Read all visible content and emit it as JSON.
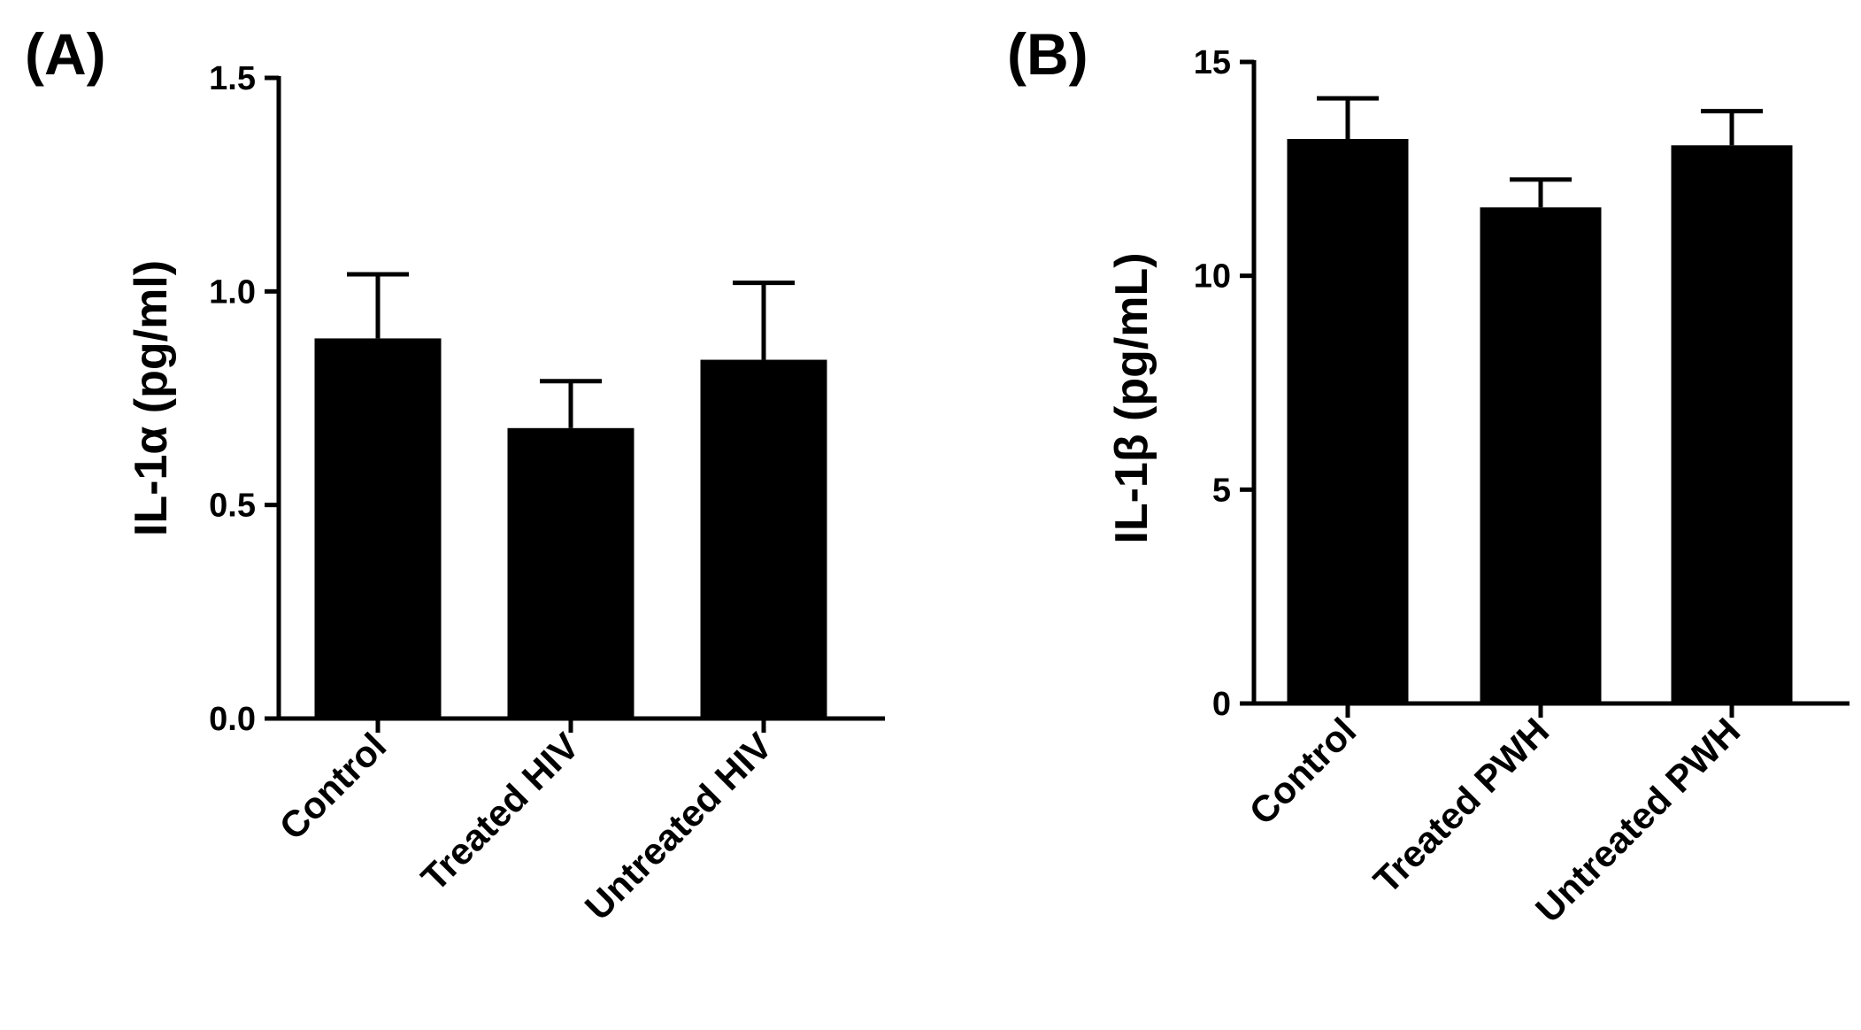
{
  "chart_data": [
    {
      "type": "bar",
      "panel_label": "(A)",
      "title": "",
      "xlabel": "",
      "ylabel": "IL-1α (pg/ml)",
      "ylim": [
        0,
        1.5
      ],
      "yticks": [
        0.0,
        0.5,
        1.0,
        1.5
      ],
      "ytick_labels": [
        "0.0",
        "0.5",
        "1.0",
        "1.5"
      ],
      "categories": [
        "Control",
        "Treated HIV",
        "Untreated HIV"
      ],
      "values": [
        0.89,
        0.68,
        0.84
      ],
      "errors": [
        0.15,
        0.11,
        0.18
      ],
      "bar_color": "#000000",
      "grid": false
    },
    {
      "type": "bar",
      "panel_label": "(B)",
      "title": "",
      "xlabel": "",
      "ylabel": "IL-1β (pg/mL)",
      "ylim": [
        0,
        15
      ],
      "yticks": [
        0,
        5,
        10,
        15
      ],
      "ytick_labels": [
        "0",
        "5",
        "10",
        "15"
      ],
      "categories": [
        "Control",
        "Treated PWH",
        "Untreated PWH"
      ],
      "values": [
        13.2,
        11.6,
        13.05
      ],
      "errors": [
        0.95,
        0.65,
        0.8
      ],
      "bar_color": "#000000",
      "grid": false
    }
  ]
}
